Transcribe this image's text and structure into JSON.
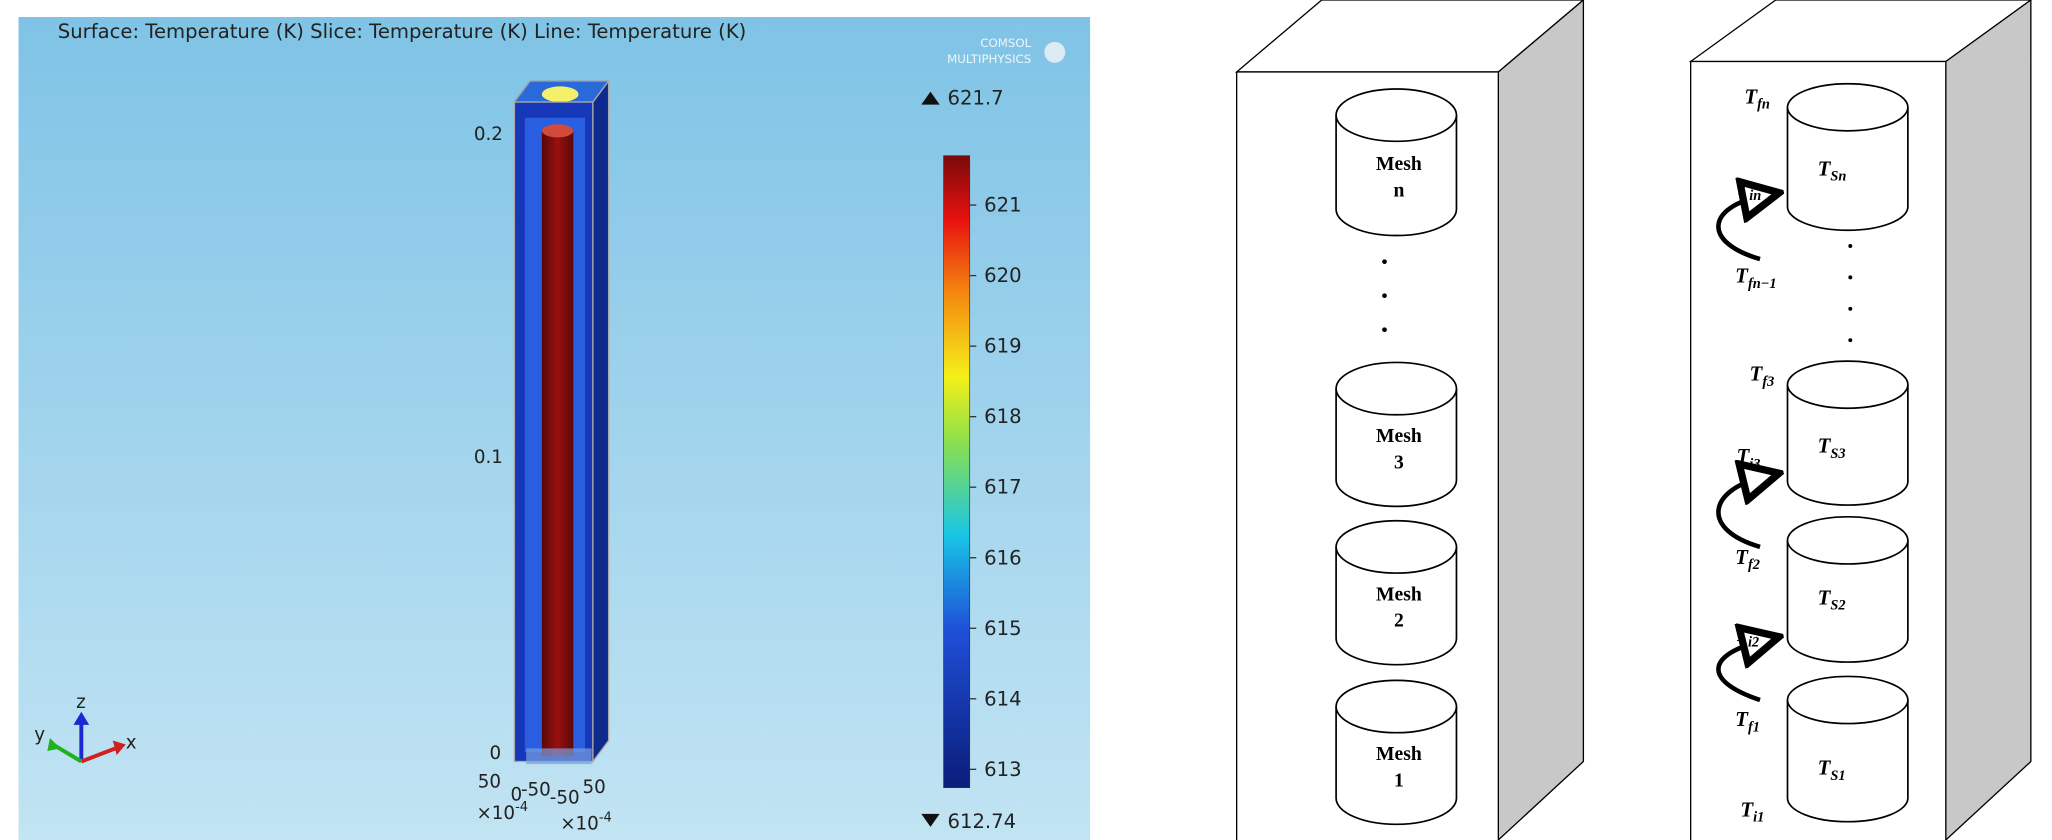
{
  "simulation": {
    "title": "Surface: Temperature (K)  Slice: Temperature (K)  Line: Temperature (K)",
    "logo": [
      "COMSOL",
      "MULTIPHYSICS"
    ],
    "z_ticks": [
      "0.2",
      "0.1",
      "0"
    ],
    "xy_ticks": [
      "50",
      "0",
      "-50",
      "-50",
      "50"
    ],
    "multipliers": [
      {
        "base": "×10",
        "exp": "-4"
      },
      {
        "base": "×10",
        "exp": "-4"
      }
    ],
    "triad": [
      "y",
      "z",
      "x"
    ],
    "colorbar": {
      "max": 621.7,
      "min": 612.74,
      "ticks": [
        621,
        620,
        619,
        618,
        617,
        616,
        615,
        614,
        613
      ]
    }
  },
  "mesh_diagram": {
    "meshes": [
      {
        "line1": "Mesh",
        "line2": "n"
      },
      {
        "line1": "Mesh",
        "line2": "3"
      },
      {
        "line1": "Mesh",
        "line2": "2"
      },
      {
        "line1": "Mesh",
        "line2": "1"
      }
    ]
  },
  "temperature_diagram": {
    "labels": [
      {
        "base": "T",
        "sub": "fn"
      },
      {
        "base": "T",
        "sub": "Sn"
      },
      {
        "base": "T",
        "sub": "in"
      },
      {
        "base": "T",
        "sub": "fn−1"
      },
      {
        "base": "T",
        "sub": "f3"
      },
      {
        "base": "T",
        "sub": "S3"
      },
      {
        "base": "T",
        "sub": "i3"
      },
      {
        "base": "T",
        "sub": "f2"
      },
      {
        "base": "T",
        "sub": "S2"
      },
      {
        "base": "T",
        "sub": "i2"
      },
      {
        "base": "T",
        "sub": "f1"
      },
      {
        "base": "T",
        "sub": "S1"
      },
      {
        "base": "T",
        "sub": "i1"
      }
    ]
  }
}
